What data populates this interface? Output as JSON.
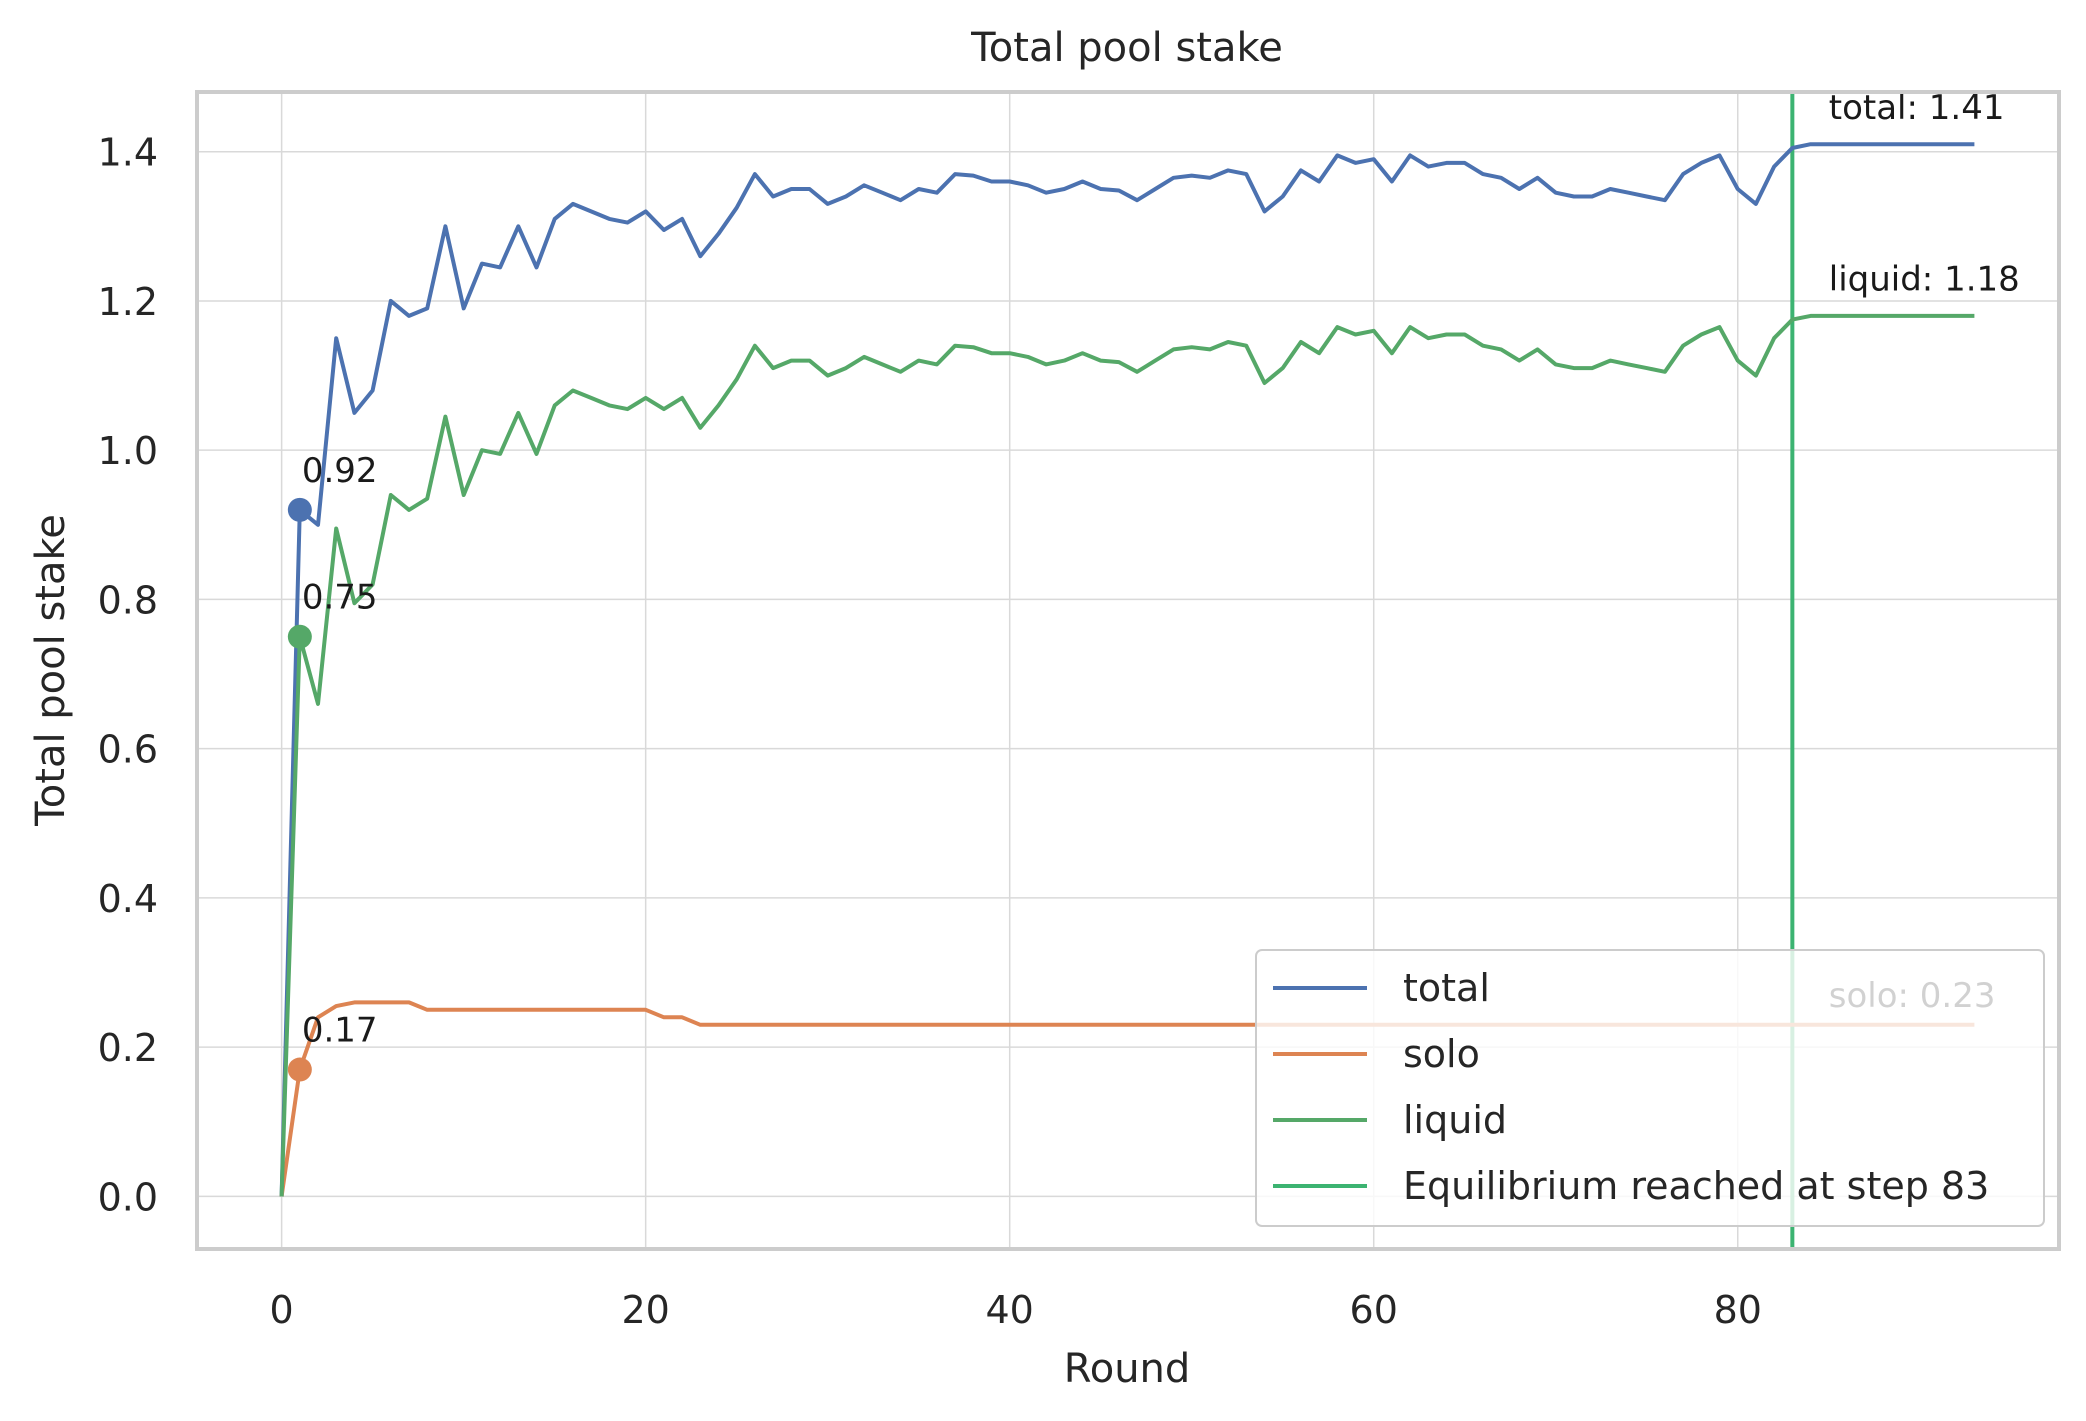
{
  "chart_data": {
    "type": "line",
    "title": "Total pool stake",
    "xlabel": "Round",
    "ylabel": "Total pool stake",
    "xlim": [
      -4.65,
      97.65
    ],
    "ylim": [
      -0.0705,
      1.48
    ],
    "xticks": [
      0,
      20,
      40,
      60,
      80
    ],
    "yticks": [
      0.0,
      0.2,
      0.4,
      0.6,
      0.8,
      1.0,
      1.2,
      1.4
    ],
    "ytick_labels": [
      "0.0",
      "0.2",
      "0.4",
      "0.6",
      "0.8",
      "1.0",
      "1.2",
      "1.4"
    ],
    "grid": true,
    "legend_position": "lower right",
    "colors": {
      "total": "#4c72b0",
      "solo": "#dd8452",
      "liquid": "#55a868",
      "equilibrium": "#3cb371",
      "grid": "#d9d9d9",
      "spine": "#cccccc",
      "text": "#262626"
    },
    "x": [
      0,
      1,
      2,
      3,
      4,
      5,
      6,
      7,
      8,
      9,
      10,
      11,
      12,
      13,
      14,
      15,
      16,
      17,
      18,
      19,
      20,
      21,
      22,
      23,
      24,
      25,
      26,
      27,
      28,
      29,
      30,
      31,
      32,
      33,
      34,
      35,
      36,
      37,
      38,
      39,
      40,
      41,
      42,
      43,
      44,
      45,
      46,
      47,
      48,
      49,
      50,
      51,
      52,
      53,
      54,
      55,
      56,
      57,
      58,
      59,
      60,
      61,
      62,
      63,
      64,
      65,
      66,
      67,
      68,
      69,
      70,
      71,
      72,
      73,
      74,
      75,
      76,
      77,
      78,
      79,
      80,
      81,
      82,
      83,
      84,
      85,
      86,
      87,
      88,
      89,
      90,
      91,
      92,
      93
    ],
    "series": [
      {
        "name": "total",
        "color": "#4c72b0",
        "values": [
          0.0,
          0.92,
          0.9,
          1.15,
          1.05,
          1.08,
          1.2,
          1.18,
          1.19,
          1.3,
          1.19,
          1.25,
          1.245,
          1.3,
          1.245,
          1.31,
          1.33,
          1.32,
          1.31,
          1.305,
          1.32,
          1.295,
          1.31,
          1.26,
          1.29,
          1.325,
          1.37,
          1.34,
          1.35,
          1.35,
          1.33,
          1.34,
          1.355,
          1.345,
          1.335,
          1.35,
          1.345,
          1.37,
          1.368,
          1.36,
          1.36,
          1.355,
          1.345,
          1.35,
          1.36,
          1.35,
          1.348,
          1.335,
          1.35,
          1.365,
          1.368,
          1.365,
          1.375,
          1.37,
          1.32,
          1.34,
          1.375,
          1.36,
          1.395,
          1.385,
          1.39,
          1.36,
          1.395,
          1.38,
          1.385,
          1.385,
          1.37,
          1.365,
          1.35,
          1.365,
          1.345,
          1.34,
          1.34,
          1.35,
          1.345,
          1.34,
          1.335,
          1.37,
          1.385,
          1.395,
          1.35,
          1.33,
          1.38,
          1.405,
          1.41,
          1.41,
          1.41,
          1.41,
          1.41,
          1.41,
          1.41,
          1.41,
          1.41,
          1.41
        ]
      },
      {
        "name": "solo",
        "color": "#dd8452",
        "values": [
          0.0,
          0.17,
          0.24,
          0.255,
          0.26,
          0.26,
          0.26,
          0.26,
          0.25,
          0.25,
          0.25,
          0.25,
          0.25,
          0.25,
          0.25,
          0.25,
          0.25,
          0.25,
          0.25,
          0.25,
          0.25,
          0.24,
          0.24,
          0.23,
          0.23,
          0.23,
          0.23,
          0.23,
          0.23,
          0.23,
          0.23,
          0.23,
          0.23,
          0.23,
          0.23,
          0.23,
          0.23,
          0.23,
          0.23,
          0.23,
          0.23,
          0.23,
          0.23,
          0.23,
          0.23,
          0.23,
          0.23,
          0.23,
          0.23,
          0.23,
          0.23,
          0.23,
          0.23,
          0.23,
          0.23,
          0.23,
          0.23,
          0.23,
          0.23,
          0.23,
          0.23,
          0.23,
          0.23,
          0.23,
          0.23,
          0.23,
          0.23,
          0.23,
          0.23,
          0.23,
          0.23,
          0.23,
          0.23,
          0.23,
          0.23,
          0.23,
          0.23,
          0.23,
          0.23,
          0.23,
          0.23,
          0.23,
          0.23,
          0.23,
          0.23,
          0.23,
          0.23,
          0.23,
          0.23,
          0.23,
          0.23,
          0.23,
          0.23,
          0.23
        ]
      },
      {
        "name": "liquid",
        "color": "#55a868",
        "values": [
          0.0,
          0.75,
          0.66,
          0.895,
          0.795,
          0.82,
          0.94,
          0.92,
          0.935,
          1.045,
          0.94,
          1.0,
          0.995,
          1.05,
          0.995,
          1.06,
          1.08,
          1.07,
          1.06,
          1.055,
          1.07,
          1.055,
          1.07,
          1.03,
          1.06,
          1.095,
          1.14,
          1.11,
          1.12,
          1.12,
          1.1,
          1.11,
          1.125,
          1.115,
          1.105,
          1.12,
          1.115,
          1.14,
          1.138,
          1.13,
          1.13,
          1.125,
          1.115,
          1.12,
          1.13,
          1.12,
          1.118,
          1.105,
          1.12,
          1.135,
          1.138,
          1.135,
          1.145,
          1.14,
          1.09,
          1.11,
          1.145,
          1.13,
          1.165,
          1.155,
          1.16,
          1.13,
          1.165,
          1.15,
          1.155,
          1.155,
          1.14,
          1.135,
          1.12,
          1.135,
          1.115,
          1.11,
          1.11,
          1.12,
          1.115,
          1.11,
          1.105,
          1.14,
          1.155,
          1.165,
          1.12,
          1.1,
          1.15,
          1.175,
          1.18,
          1.18,
          1.18,
          1.18,
          1.18,
          1.18,
          1.18,
          1.18,
          1.18,
          1.18
        ]
      }
    ],
    "start_markers": [
      {
        "series": "total",
        "x": 1,
        "y": 0.92,
        "label": "0.92"
      },
      {
        "series": "liquid",
        "x": 1,
        "y": 0.75,
        "label": "0.75"
      },
      {
        "series": "solo",
        "x": 1,
        "y": 0.17,
        "label": "0.17"
      }
    ],
    "end_labels": [
      {
        "series": "total",
        "x": 85,
        "y": 1.46,
        "label": "total: 1.41"
      },
      {
        "series": "liquid",
        "x": 85,
        "y": 1.23,
        "label": "liquid: 1.18"
      },
      {
        "series": "solo",
        "x": 85,
        "y": 0.27,
        "label": "solo: 0.23"
      }
    ],
    "equilibrium": {
      "x": 83,
      "label": "Equilibrium reached at step 83"
    },
    "legend": [
      "total",
      "solo",
      "liquid",
      "Equilibrium reached at step 83"
    ]
  }
}
